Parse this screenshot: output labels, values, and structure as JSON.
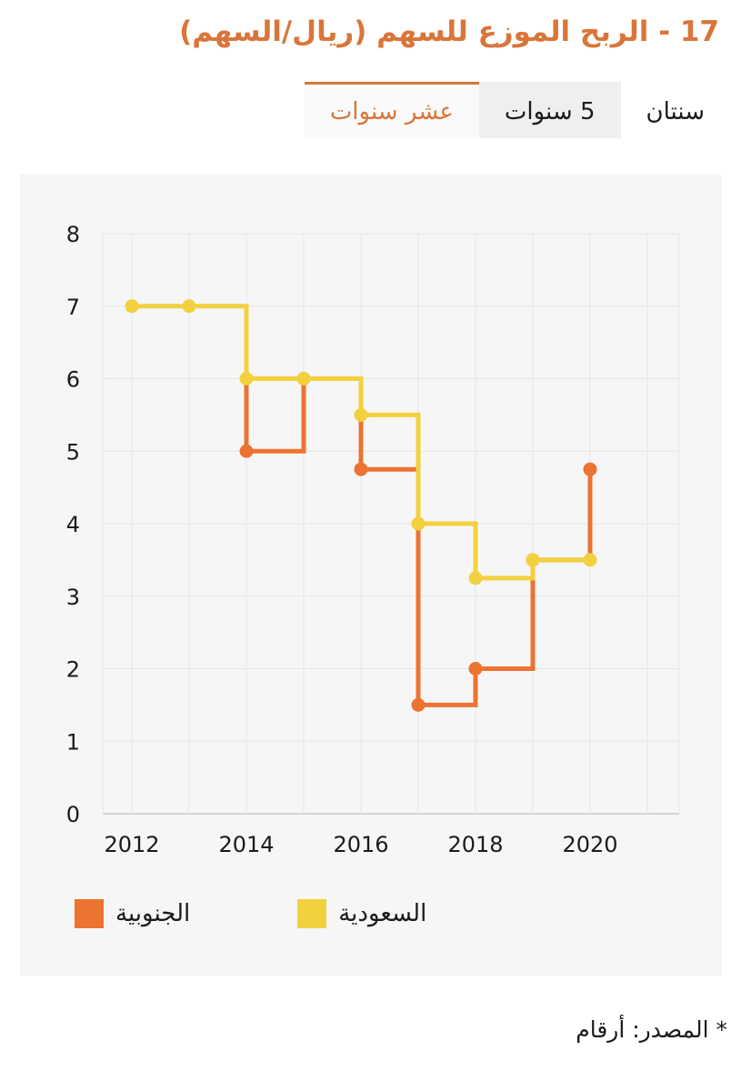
{
  "header": {
    "title": "17 - الربح الموزع للسهم (ريال/السهم)"
  },
  "tabs": [
    {
      "id": "two-years",
      "label": "سنتان",
      "active": false,
      "shaded": false
    },
    {
      "id": "five-years",
      "label": "5 سنوات",
      "active": false,
      "shaded": true
    },
    {
      "id": "ten-years",
      "label": "عشر سنوات",
      "active": true,
      "shaded": false
    }
  ],
  "colors": {
    "accent": "#DA7539",
    "card_background": "#F6F6F6"
  },
  "chart_data": {
    "type": "line",
    "step": "before",
    "categories": [
      2012,
      2013,
      2014,
      2015,
      2016,
      2017,
      2018,
      2019,
      2020
    ],
    "x_grid_years": [
      2012,
      2013,
      2014,
      2015,
      2016,
      2017,
      2018,
      2019,
      2020,
      2021
    ],
    "x_tick_years": [
      2012,
      2014,
      2016,
      2018,
      2020
    ],
    "y_ticks": [
      0,
      1,
      2,
      3,
      4,
      5,
      6,
      7,
      8
    ],
    "ylim": [
      0,
      8
    ],
    "grid": true,
    "legend_position": "bottom-left",
    "series": [
      {
        "id": "janoubia",
        "name": "الجنوبية",
        "color": "#EC7331",
        "lead_in_value": 6,
        "values": [
          null,
          null,
          5,
          6,
          4.75,
          1.5,
          2,
          3.5,
          4.75
        ]
      },
      {
        "id": "saudia",
        "name": "السعودية",
        "color": "#F2D13E",
        "lead_in_value": null,
        "values": [
          7,
          7,
          6,
          6,
          5.5,
          4,
          3.25,
          3.5,
          3.5
        ]
      }
    ]
  },
  "footer": {
    "source_note": "* المصدر: أرقام"
  }
}
